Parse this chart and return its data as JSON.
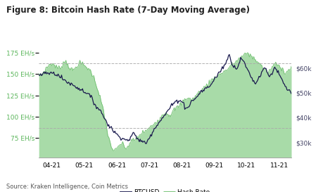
{
  "title": "Figure 8: Bitcoin Hash Rate (7-Day Moving Average)",
  "source": "Source: Kraken Intelligence, Coin Metrics",
  "left_yticks": [
    75,
    100,
    125,
    150,
    175
  ],
  "left_ylabels": [
    "75 EH/s",
    "100 EH/s",
    "125 EH/s",
    "150 EH/s",
    "175 EH/s"
  ],
  "right_yticks": [
    30000,
    40000,
    50000,
    60000
  ],
  "right_ylabels": [
    "$30k",
    "$40k",
    "$50k",
    "$60k"
  ],
  "left_ylim": [
    52,
    192
  ],
  "right_ylim": [
    24000,
    72000
  ],
  "dashed_line_upper": 163,
  "dashed_line_lower": 87,
  "xtick_labels": [
    "04-21",
    "05-21",
    "06-21",
    "07-21",
    "08-21",
    "09-21",
    "10-21",
    "11-21"
  ],
  "hash_fill_color": "#a8dba8",
  "hash_line_color": "#6dbf6d",
  "btc_color": "#1a1a4e",
  "background_color": "#ffffff",
  "title_color": "#222222",
  "label_color_left": "#5ab55a",
  "label_color_right": "#444466",
  "title_fontsize": 8.5,
  "axis_fontsize": 6.5,
  "legend_fontsize": 6.5,
  "source_fontsize": 6.0,
  "n_points": 290
}
